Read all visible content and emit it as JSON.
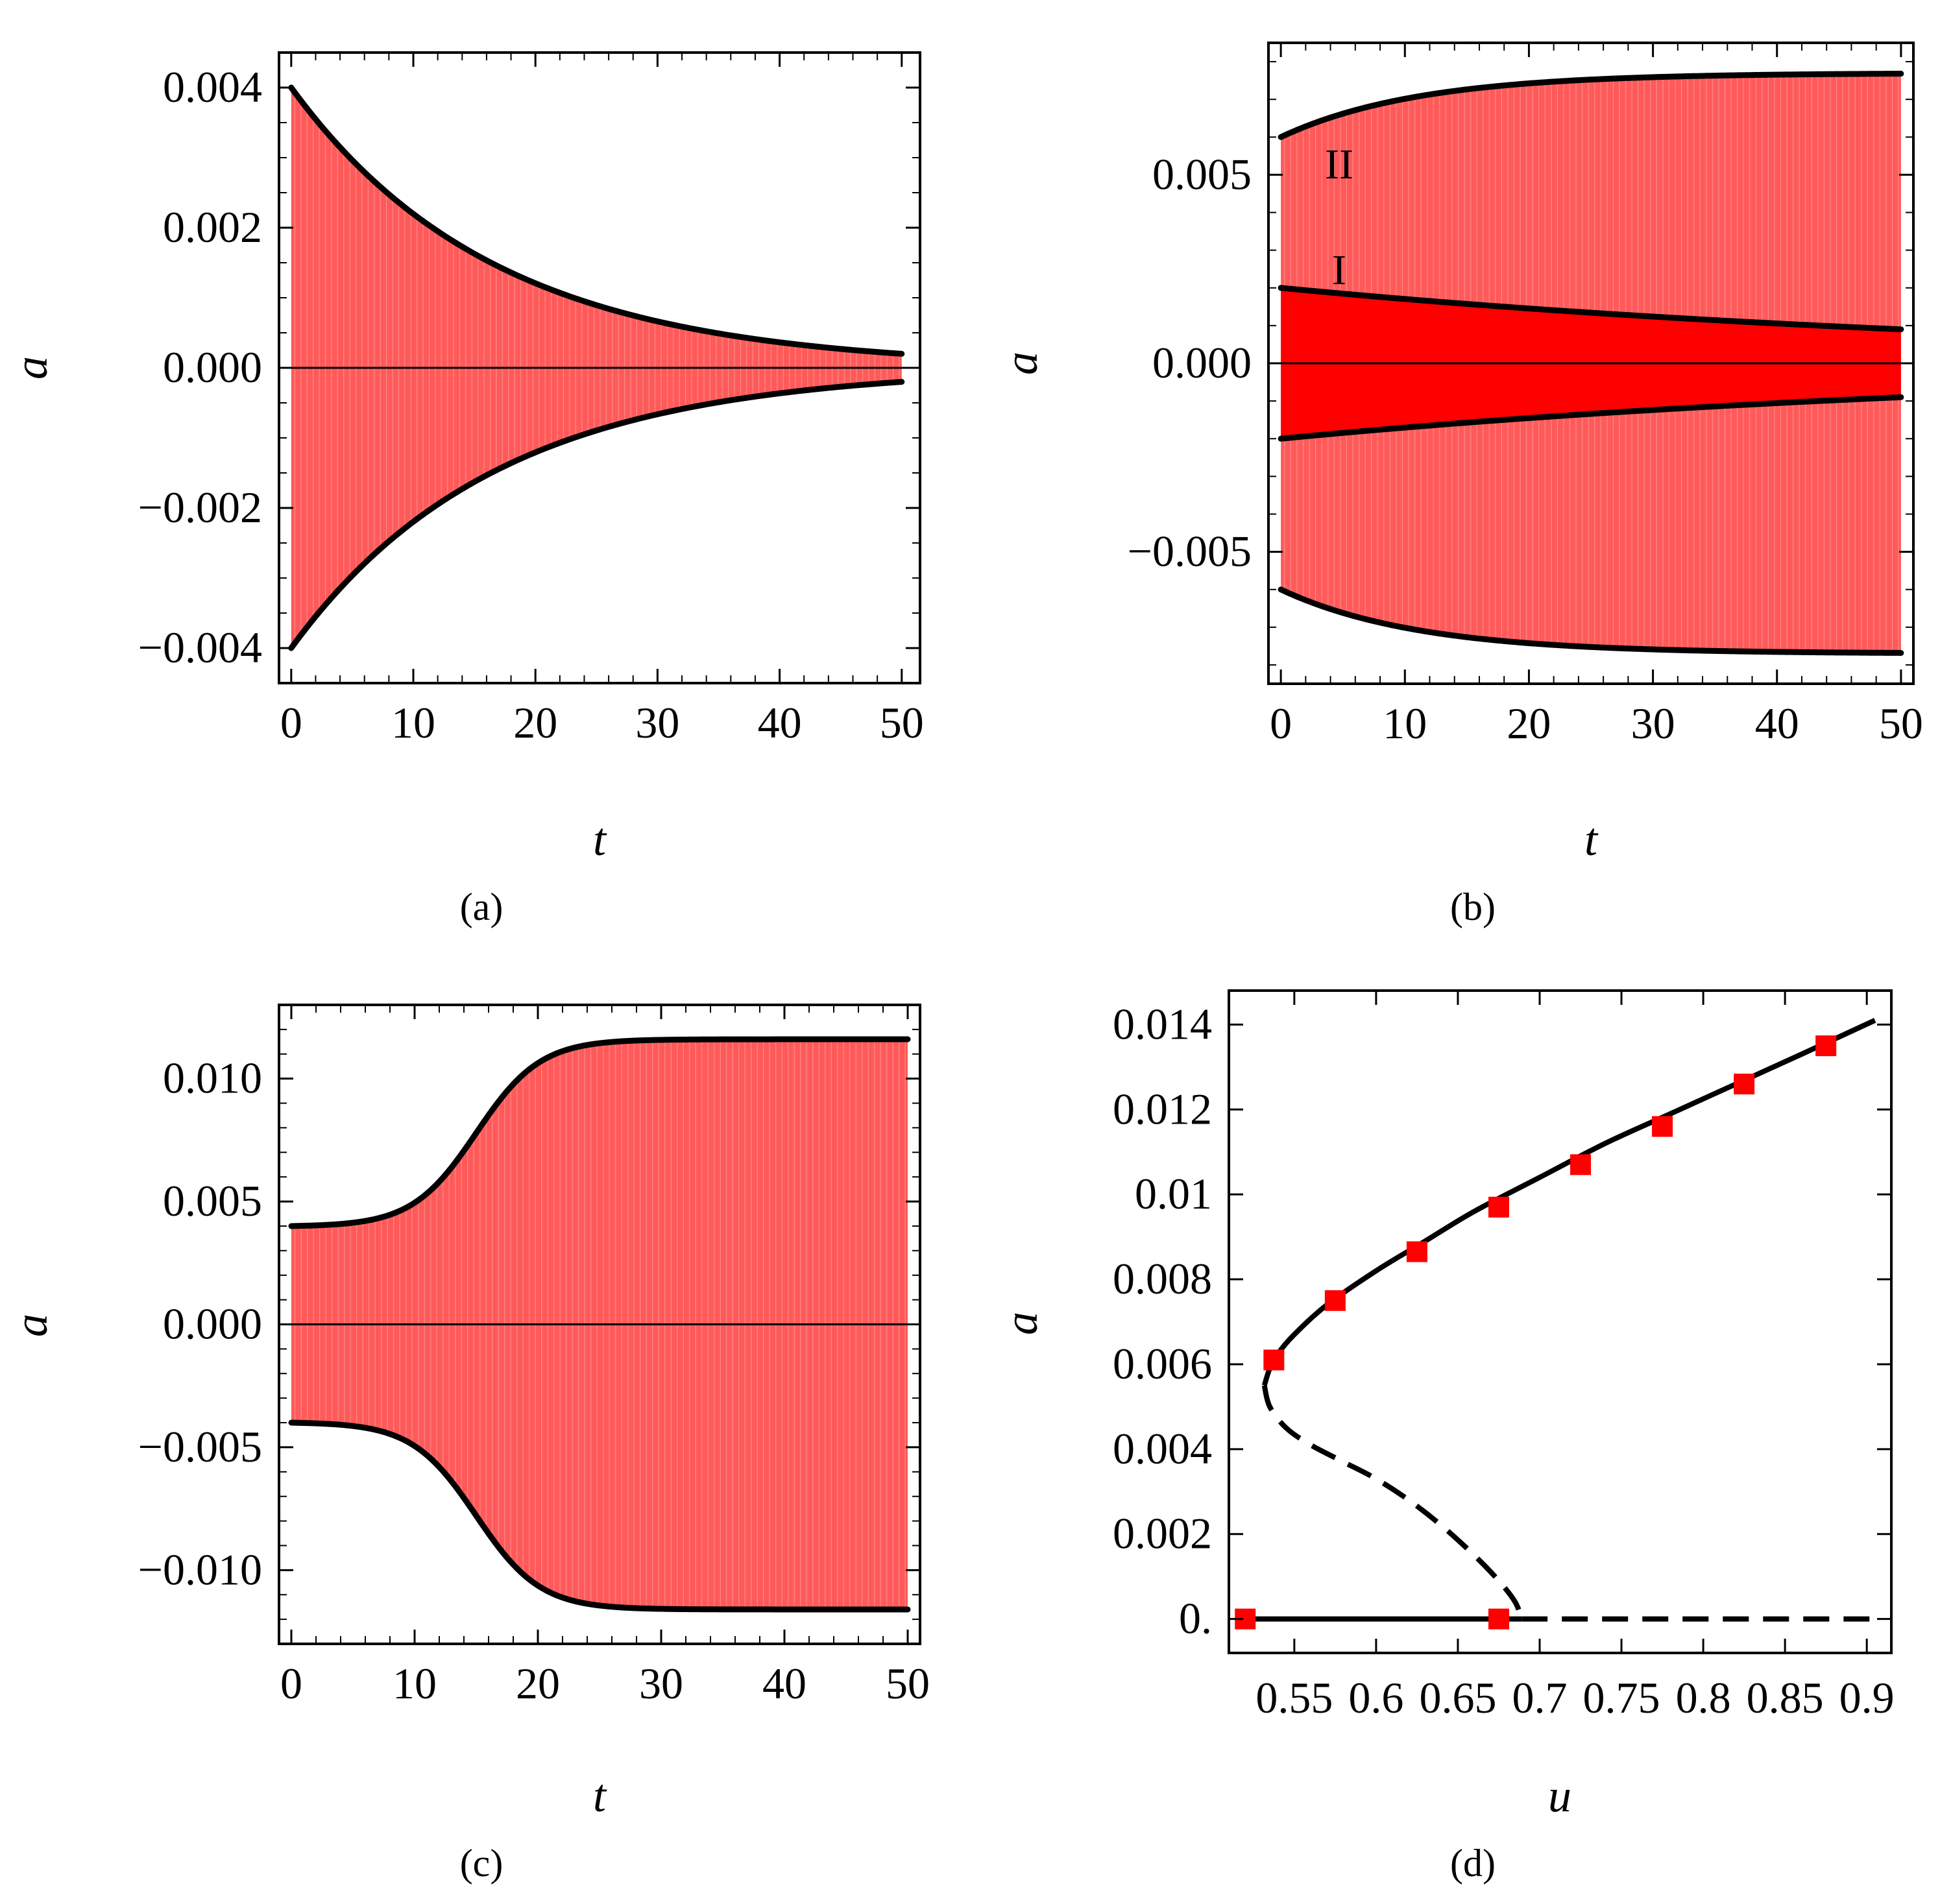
{
  "colors": {
    "fill_light": "#ff5a5a",
    "fill_dark": "#ff0000",
    "envelope": "#000000",
    "marker": "#ff0000"
  },
  "chart_data": [
    {
      "id": "a",
      "type": "area",
      "caption": "(a)",
      "xlabel": "t",
      "ylabel": "a",
      "xlim": [
        -1,
        51.5
      ],
      "ylim": [
        -0.0045,
        0.0045
      ],
      "xticks": [
        0,
        10,
        20,
        30,
        40,
        50
      ],
      "xtick_labels": [
        "0",
        "10",
        "20",
        "30",
        "40",
        "50"
      ],
      "yticks": [
        -0.004,
        -0.002,
        0,
        0.002,
        0.004
      ],
      "ytick_labels": [
        "−0.004",
        "−0.002",
        "0.000",
        "0.002",
        "0.004"
      ],
      "series": [
        {
          "name": "envelope",
          "a0": 0.004,
          "a_end": 0.0002,
          "t_end": 50,
          "shape": "decay"
        }
      ]
    },
    {
      "id": "b",
      "type": "area",
      "caption": "(b)",
      "xlabel": "t",
      "ylabel": "a",
      "xlim": [
        -1,
        51
      ],
      "ylim": [
        -0.0085,
        0.0085
      ],
      "xticks": [
        0,
        10,
        20,
        30,
        40,
        50
      ],
      "xtick_labels": [
        "0",
        "10",
        "20",
        "30",
        "40",
        "50"
      ],
      "yticks": [
        -0.005,
        0,
        0.005
      ],
      "ytick_labels": [
        "−0.005",
        "0.000",
        "0.005"
      ],
      "series": [
        {
          "name": "II",
          "a0": 0.006,
          "a_end": 0.0077,
          "t_end": 50,
          "shape": "grow_saturate"
        },
        {
          "name": "I",
          "a0": 0.002,
          "a_end": 0.0009,
          "t_end": 50,
          "shape": "decay"
        }
      ],
      "annotations": [
        "II",
        "I"
      ]
    },
    {
      "id": "c",
      "type": "area",
      "caption": "(c)",
      "xlabel": "t",
      "ylabel": "a",
      "xlim": [
        -1,
        51
      ],
      "ylim": [
        -0.013,
        0.013
      ],
      "xticks": [
        0,
        10,
        20,
        30,
        40,
        50
      ],
      "xtick_labels": [
        "0",
        "10",
        "20",
        "30",
        "40",
        "50"
      ],
      "yticks": [
        -0.01,
        -0.005,
        0,
        0.005,
        0.01
      ],
      "ytick_labels": [
        "−0.010",
        "−0.005",
        "0.000",
        "0.005",
        "0.010"
      ],
      "series": [
        {
          "name": "envelope",
          "a0": 0.004,
          "a_end": 0.0116,
          "t_mid": 15,
          "t_end": 50,
          "shape": "sigmoid"
        }
      ]
    },
    {
      "id": "d",
      "type": "line",
      "caption": "(d)",
      "xlabel": "u",
      "ylabel": "a",
      "xlim": [
        0.51,
        0.915
      ],
      "ylim": [
        -0.0008,
        0.0148
      ],
      "xticks": [
        0.55,
        0.6,
        0.65,
        0.7,
        0.75,
        0.8,
        0.85,
        0.9
      ],
      "xtick_labels": [
        "0.55",
        "0.6",
        "0.65",
        "0.7",
        "0.75",
        "0.8",
        "0.85",
        "0.9"
      ],
      "yticks": [
        0,
        0.002,
        0.004,
        0.006,
        0.008,
        0.01,
        0.012,
        0.014
      ],
      "ytick_labels": [
        "0.",
        "0.002",
        "0.004",
        "0.006",
        "0.008",
        "0.01",
        "0.012",
        "0.014"
      ],
      "branches": [
        {
          "name": "stable upper branch",
          "style": "solid",
          "x": [
            0.5317,
            0.535,
            0.54,
            0.55,
            0.57,
            0.6,
            0.63,
            0.66,
            0.7,
            0.74,
            0.78,
            0.82,
            0.86,
            0.905
          ],
          "y": [
            0.0055,
            0.0059,
            0.00625,
            0.0067,
            0.0074,
            0.0082,
            0.0089,
            0.0096,
            0.0104,
            0.0112,
            0.0119,
            0.0126,
            0.0133,
            0.0141
          ]
        },
        {
          "name": "unstable middle branch",
          "style": "dashed",
          "x": [
            0.5317,
            0.535,
            0.545,
            0.56,
            0.58,
            0.6,
            0.62,
            0.64,
            0.66,
            0.675,
            0.685,
            0.689
          ],
          "y": [
            0.0055,
            0.005,
            0.0045,
            0.0041,
            0.0037,
            0.0033,
            0.0028,
            0.0022,
            0.0015,
            0.0009,
            0.0004,
            0.0
          ]
        },
        {
          "name": "stable zero branch",
          "style": "solid",
          "x": [
            0.52,
            0.689
          ],
          "y": [
            0,
            0
          ]
        },
        {
          "name": "unstable zero branch",
          "style": "dashed",
          "x": [
            0.689,
            0.905
          ],
          "y": [
            0,
            0
          ]
        }
      ],
      "markers": {
        "x": [
          0.52,
          0.5375,
          0.575,
          0.625,
          0.675,
          0.725,
          0.775,
          0.825,
          0.875,
          0.675
        ],
        "y": [
          0,
          0.0061,
          0.0075,
          0.00865,
          0.0097,
          0.0107,
          0.0116,
          0.0126,
          0.0135,
          0
        ]
      }
    }
  ]
}
